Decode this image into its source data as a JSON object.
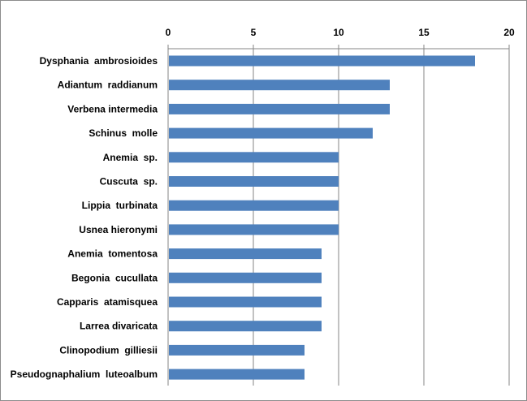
{
  "chart_data": {
    "type": "bar",
    "orientation": "horizontal",
    "categories": [
      "Dysphania  ambrosioides",
      "Adiantum  raddianum",
      "Verbena intermedia",
      "Schinus  molle",
      "Anemia  sp.",
      "Cuscuta  sp.",
      "Lippia  turbinata",
      "Usnea hieronymi",
      "Anemia  tomentosa",
      "Begonia  cucullata",
      "Capparis  atamisquea",
      "Larrea divaricata",
      "Clinopodium  gilliesii",
      "Pseudognaphalium  luteoalbum"
    ],
    "values": [
      18,
      13,
      13,
      12,
      10,
      10,
      10,
      10,
      9,
      9,
      9,
      9,
      8,
      8
    ],
    "xlim": [
      0,
      20
    ],
    "xticks": [
      "0",
      "5",
      "10",
      "15",
      "20"
    ],
    "x_axis_position": "top",
    "grid": "vertical gridlines at each major tick",
    "legend": "none",
    "bar_color": "#4f81bd",
    "grid_color": "#868686"
  }
}
